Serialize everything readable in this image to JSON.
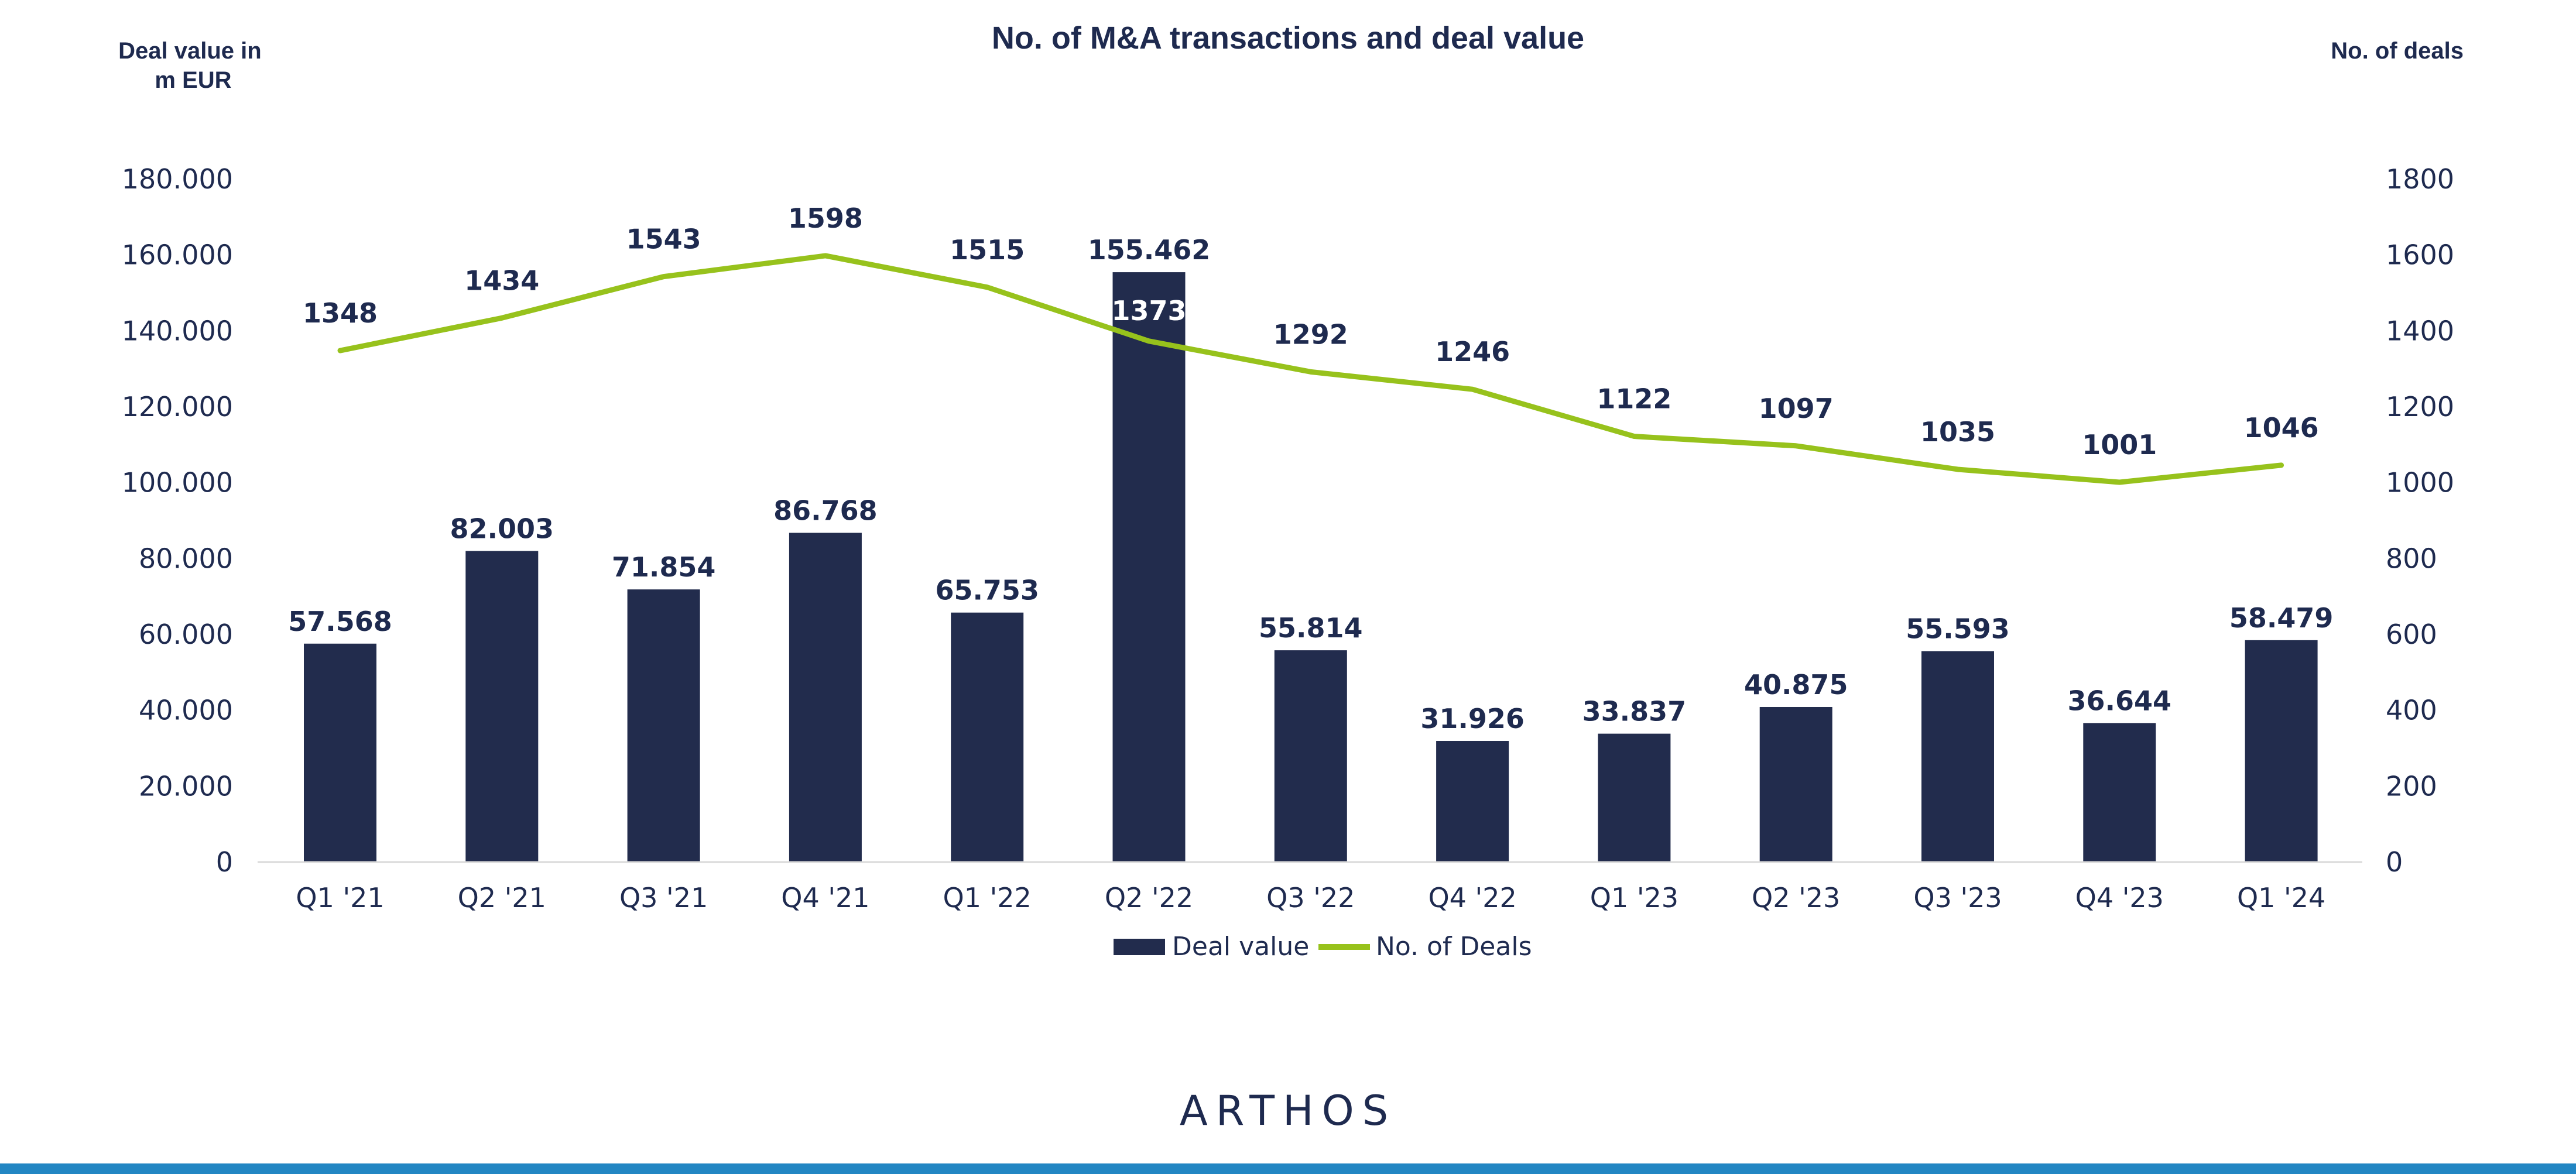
{
  "brand": {
    "logo": "ARTHOS"
  },
  "colors": {
    "bar": "#222c4d",
    "line": "#97c21c",
    "text": "#1e2a4f",
    "axis": "#d9d9d9",
    "footer_band": "#2286c3"
  },
  "chart_data": {
    "type": "bar",
    "title": "No. of M&A transactions and deal value",
    "ylabel": "Deal value in m EUR",
    "ylabel_lines": [
      "Deal value in",
      "m EUR"
    ],
    "y2label": "No. of deals",
    "ylim": [
      0,
      180000
    ],
    "y2lim": [
      0,
      1800
    ],
    "yticks": [
      "0",
      "20.000",
      "40.000",
      "60.000",
      "80.000",
      "100.000",
      "120.000",
      "140.000",
      "160.000",
      "180.000"
    ],
    "y2ticks": [
      "0",
      "200",
      "400",
      "600",
      "800",
      "1000",
      "1200",
      "1400",
      "1600",
      "1800"
    ],
    "categories": [
      "Q1 '21",
      "Q2 '21",
      "Q3 '21",
      "Q4 '21",
      "Q1 '22",
      "Q2 '22",
      "Q3 '22",
      "Q4 '22",
      "Q1 '23",
      "Q2 '23",
      "Q3 '23",
      "Q4 '23",
      "Q1 '24"
    ],
    "series": [
      {
        "name": "Deal value",
        "type": "bar",
        "axis": "left",
        "values": [
          57568,
          82003,
          71854,
          86768,
          65753,
          155462,
          55814,
          31926,
          33837,
          40875,
          55593,
          36644,
          58479
        ],
        "labels": [
          "57.568",
          "82.003",
          "71.854",
          "86.768",
          "65.753",
          "155.462",
          "55.814",
          "31.926",
          "33.837",
          "40.875",
          "55.593",
          "36.644",
          "58.479"
        ]
      },
      {
        "name": "No. of Deals",
        "type": "line",
        "axis": "right",
        "values": [
          1348,
          1434,
          1543,
          1598,
          1515,
          1373,
          1292,
          1246,
          1122,
          1097,
          1035,
          1001,
          1046
        ],
        "labels": [
          "1348",
          "1434",
          "1543",
          "1598",
          "1515",
          "1373",
          "1292",
          "1246",
          "1122",
          "1097",
          "1035",
          "1001",
          "1046"
        ]
      }
    ],
    "legend": "bottom",
    "grid": false
  }
}
